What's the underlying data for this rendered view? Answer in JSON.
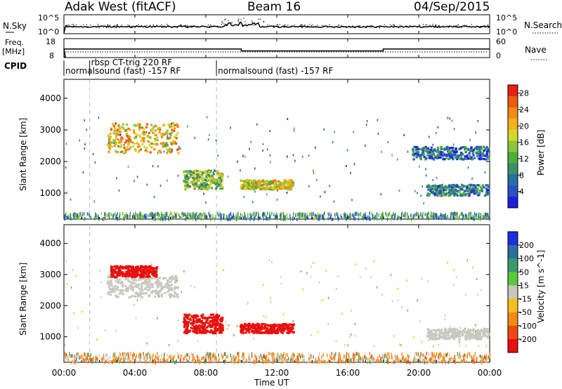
{
  "header": {
    "station": "Adak West (fitACF)",
    "beam": "Beam 16",
    "date": "04/Sep/2015"
  },
  "strip_labels": {
    "nsky": "N.Sky",
    "nsky_ticks": [
      "10^5",
      "10^0"
    ],
    "nsearch": "N.Search",
    "nsearch_ticks": [
      "10^5",
      "10^0"
    ],
    "freq_top": "Freq.",
    "freq_unit": "[MHz]",
    "freq_ticks": [
      "18",
      "8"
    ],
    "nave": "Nave",
    "nave_ticks": [
      "60",
      "0"
    ],
    "cpid": "CPID"
  },
  "cpid_segments": [
    {
      "label": "normalsound (fast) -157 RF",
      "start_hour": 0.0,
      "end_hour": 8.6,
      "row": "lower"
    },
    {
      "label": "rbsp CT-trig 220 RF",
      "start_hour": 1.45,
      "end_hour": 8.6,
      "row": "upper"
    },
    {
      "label": "normalsound (fast) -157 RF",
      "start_hour": 8.6,
      "end_hour": 24.0,
      "row": "lower"
    }
  ],
  "frequency_steps": [
    {
      "start_hour": 0.0,
      "end_hour": 10.0,
      "mhz": 12.5
    },
    {
      "start_hour": 10.0,
      "end_hour": 18.0,
      "mhz": 11.5
    },
    {
      "start_hour": 18.0,
      "end_hour": 24.0,
      "mhz": 12.5
    }
  ],
  "time_axis": {
    "label": "Time UT",
    "ticks": [
      "00:00",
      "04:00",
      "08:00",
      "12:00",
      "16:00",
      "20:00",
      "00:00"
    ]
  },
  "chart_data": [
    {
      "type": "heatmap",
      "name": "power",
      "ylabel": "Slant Range [km]",
      "yticks": [
        "1000",
        "2000",
        "3000",
        "4000"
      ],
      "ylim": [
        180,
        4600
      ],
      "xlim_hours": [
        0,
        24
      ],
      "colorbar": {
        "label": "Power [dB]",
        "ticks": [
          "4",
          "8",
          "12",
          "16",
          "20",
          "24",
          "28"
        ],
        "range": [
          0,
          30
        ],
        "colors": [
          "#1d1de0",
          "#2a4fc8",
          "#2a6fa0",
          "#3a8f6a",
          "#4caf3a",
          "#8cc63a",
          "#d4d62a",
          "#f2b21a",
          "#f28a14",
          "#ee5a10",
          "#e8200e"
        ]
      },
      "regions": [
        {
          "t0": 2.4,
          "t1": 6.4,
          "r0": 2300,
          "r1": 3250,
          "level": 20
        },
        {
          "t0": 6.7,
          "t1": 8.9,
          "r0": 1150,
          "r1": 1750,
          "level": 14
        },
        {
          "t0": 9.9,
          "t1": 12.9,
          "r0": 1150,
          "r1": 1450,
          "level": 18
        },
        {
          "t0": 20.4,
          "t1": 23.9,
          "r0": 950,
          "r1": 1300,
          "level": 8
        },
        {
          "t0": 19.6,
          "t1": 23.9,
          "r0": 2100,
          "r1": 2500,
          "level": 6
        },
        {
          "t0": 0.0,
          "t1": 24.0,
          "r0": 190,
          "r1": 420,
          "level": 10
        }
      ]
    },
    {
      "type": "heatmap",
      "name": "velocity",
      "ylabel": "Slant Range [km]",
      "yticks": [
        "1000",
        "2000",
        "3000",
        "4000"
      ],
      "ylim": [
        180,
        4600
      ],
      "xlim_hours": [
        0,
        24
      ],
      "colorbar": {
        "label": "Velocity [m s^-1]",
        "ticks": [
          "200",
          "100",
          "50",
          "15",
          "-15",
          "-50",
          "-100",
          "-200"
        ],
        "colors": [
          "#1d2ee0",
          "#2a6fa0",
          "#3a9a6a",
          "#5cc83a",
          "#c8c8c0",
          "#f2c21a",
          "#f28a14",
          "#ee4a10",
          "#e8100e"
        ]
      },
      "regions": [
        {
          "t0": 2.4,
          "t1": 6.4,
          "r0": 2300,
          "r1": 3000,
          "value": 0
        },
        {
          "t0": 2.6,
          "t1": 5.2,
          "r0": 2950,
          "r1": 3300,
          "value": -200
        },
        {
          "t0": 6.7,
          "t1": 8.9,
          "r0": 1150,
          "r1": 1750,
          "value": -200
        },
        {
          "t0": 9.9,
          "t1": 12.9,
          "r0": 1150,
          "r1": 1450,
          "value": -200
        },
        {
          "t0": 20.4,
          "t1": 23.9,
          "r0": 950,
          "r1": 1300,
          "value": 0
        },
        {
          "t0": 0.0,
          "t1": 24.0,
          "r0": 190,
          "r1": 520,
          "value": -50
        }
      ]
    }
  ]
}
